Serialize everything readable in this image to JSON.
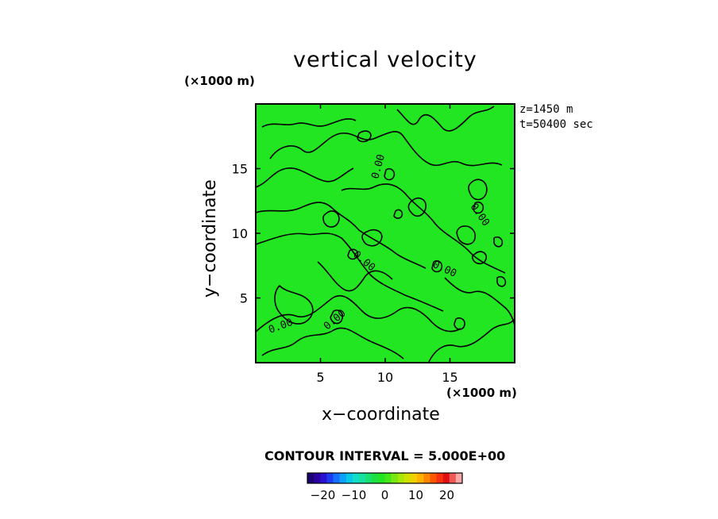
{
  "chart_data": {
    "type": "contour",
    "title": "vertical velocity",
    "xlabel": "x−coordinate",
    "ylabel": "y−coordinate",
    "x_unit": "(×1000 m)",
    "y_unit": "(×1000 m)",
    "xlim": [
      0,
      20
    ],
    "ylim": [
      0,
      20
    ],
    "xticks": [
      "5",
      "10",
      "15"
    ],
    "yticks": [
      "5",
      "10",
      "15"
    ],
    "xtick_values": [
      5,
      10,
      15
    ],
    "ytick_values": [
      5,
      10,
      15
    ],
    "annotations": [
      "z=1450  m",
      "t=50400 sec"
    ],
    "contour_interval_label": "CONTOUR INTERVAL = 5.000E+00",
    "contour_interval": 5.0,
    "contour_labels": [
      "0.00"
    ],
    "field_color": "#22e622",
    "colorbar": {
      "range": [
        -25,
        25
      ],
      "tick_values": [
        -20,
        -10,
        0,
        10,
        20
      ],
      "ticks": [
        "−20",
        "−10",
        "0",
        "10",
        "20"
      ],
      "colors": [
        "#1a0070",
        "#2a00a0",
        "#2a10d0",
        "#1c3cf0",
        "#1470ff",
        "#0ca0f8",
        "#08c8e8",
        "#10dcc8",
        "#14e0a0",
        "#18e070",
        "#1ce040",
        "#22e622",
        "#44e818",
        "#78e810",
        "#a8e808",
        "#d0e000",
        "#f0d000",
        "#ffb000",
        "#ff8800",
        "#ff5800",
        "#f83010",
        "#e01010",
        "#f05858",
        "#f8a8a8"
      ]
    }
  }
}
